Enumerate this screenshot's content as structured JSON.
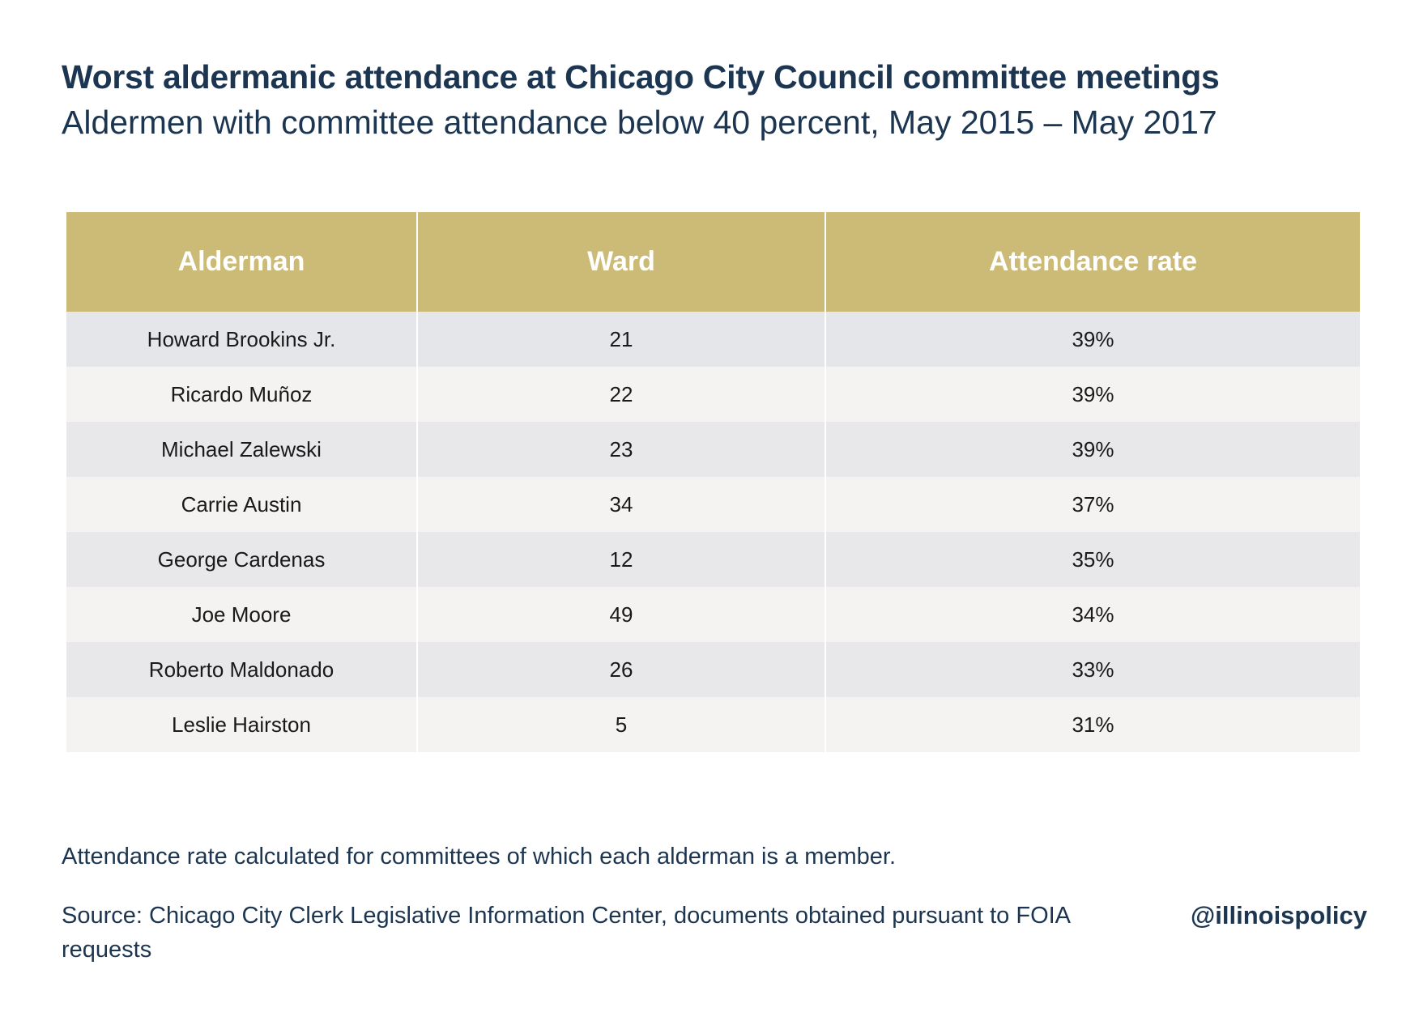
{
  "title": "Worst aldermanic attendance at Chicago City Council committee meetings",
  "subtitle": "Aldermen with committee attendance below 40 percent, May 2015 – May 2017",
  "note": "Attendance rate calculated for committees of which each alderman is a member.",
  "source": "Source: Chicago City Clerk Legislative Information Center, documents obtained pursuant to FOIA requests",
  "handle": "@illinoispolicy",
  "colors": {
    "header_bg": "#ccbb76",
    "title_text": "#1c3550",
    "row_odd": "#e8e7e9",
    "row_even": "#f5f3f1"
  },
  "chart_data": {
    "type": "table",
    "columns": [
      "Alderman",
      "Ward",
      "Attendance rate"
    ],
    "rows": [
      [
        "Howard Brookins Jr.",
        "21",
        "39%"
      ],
      [
        "Ricardo Muñoz",
        "22",
        "39%"
      ],
      [
        "Michael Zalewski",
        "23",
        "39%"
      ],
      [
        "Carrie Austin",
        "34",
        "37%"
      ],
      [
        "George Cardenas",
        "12",
        "35%"
      ],
      [
        "Joe Moore",
        "49",
        "34%"
      ],
      [
        "Roberto Maldonado",
        "26",
        "33%"
      ],
      [
        "Leslie Hairston",
        "5",
        "31%"
      ]
    ]
  }
}
